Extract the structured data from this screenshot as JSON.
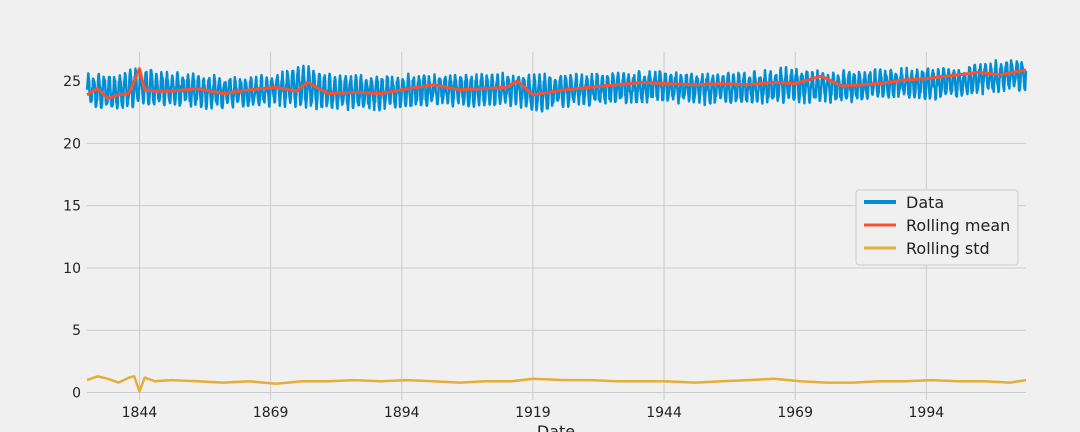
{
  "chart_data": {
    "type": "line",
    "title": "",
    "xlabel": "Date",
    "ylabel": "",
    "xlim": [
      1834,
      2013
    ],
    "ylim": [
      -0.6,
      28.3
    ],
    "x_ticks": [
      1844,
      1869,
      1894,
      1919,
      1944,
      1969,
      1994
    ],
    "y_ticks": [
      0,
      5,
      10,
      15,
      20,
      25
    ],
    "grid": true,
    "legend_position": "right",
    "colors": {
      "data": "#008fd5",
      "rolling_mean": "#fc4f30",
      "rolling_std": "#e5ae38"
    },
    "series": [
      {
        "name": "Data",
        "description_stats": {
          "x_start": 1834,
          "x_end": 2013,
          "low_range": [
            21.8,
            23.5
          ],
          "high_range": [
            25.2,
            27.0
          ]
        },
        "band": {
          "x": [
            1834,
            1840,
            1844,
            1850,
            1860,
            1869,
            1875,
            1880,
            1890,
            1894,
            1900,
            1910,
            1916,
            1919,
            1925,
            1935,
            1944,
            1950,
            1960,
            1969,
            1975,
            1985,
            1994,
            2000,
            2005,
            2013
          ],
          "low": [
            22.8,
            22.4,
            22.8,
            22.9,
            22.7,
            23.0,
            22.8,
            22.6,
            22.6,
            22.8,
            23.0,
            22.9,
            23.0,
            22.3,
            22.9,
            23.1,
            23.3,
            23.1,
            23.1,
            23.2,
            23.2,
            23.5,
            23.4,
            23.7,
            24.0,
            24.1
          ],
          "high": [
            25.6,
            25.8,
            26.3,
            25.8,
            25.4,
            25.5,
            26.5,
            25.6,
            25.5,
            25.6,
            25.7,
            25.6,
            25.7,
            25.7,
            25.6,
            25.8,
            25.9,
            25.7,
            25.8,
            26.2,
            25.8,
            26.0,
            26.2,
            26.1,
            26.5,
            27.0
          ]
        }
      },
      {
        "name": "Rolling mean",
        "x": [
          1834,
          1836,
          1838,
          1840,
          1842,
          1844,
          1845,
          1847,
          1850,
          1855,
          1860,
          1865,
          1870,
          1874,
          1876,
          1880,
          1885,
          1890,
          1894,
          1900,
          1905,
          1910,
          1914,
          1916,
          1919,
          1925,
          1930,
          1935,
          1940,
          1944,
          1950,
          1955,
          1960,
          1965,
          1969,
          1974,
          1978,
          1985,
          1990,
          1994,
          2000,
          2004,
          2008,
          2013
        ],
        "y": [
          23.9,
          24.4,
          23.6,
          23.9,
          24.0,
          26.0,
          24.3,
          24.2,
          24.2,
          24.4,
          24.0,
          24.3,
          24.5,
          24.2,
          24.9,
          24.0,
          24.1,
          24.0,
          24.3,
          24.7,
          24.3,
          24.4,
          24.5,
          25.0,
          23.9,
          24.3,
          24.5,
          24.7,
          24.9,
          24.8,
          24.7,
          24.8,
          24.7,
          24.9,
          24.8,
          25.4,
          24.6,
          24.8,
          25.1,
          25.2,
          25.5,
          25.7,
          25.5,
          25.9
        ]
      },
      {
        "name": "Rolling std",
        "x": [
          1834,
          1836,
          1838,
          1840,
          1842,
          1843,
          1844,
          1845,
          1847,
          1850,
          1855,
          1860,
          1865,
          1870,
          1875,
          1880,
          1885,
          1890,
          1895,
          1900,
          1905,
          1910,
          1915,
          1919,
          1925,
          1930,
          1935,
          1940,
          1944,
          1950,
          1955,
          1960,
          1965,
          1970,
          1975,
          1980,
          1985,
          1990,
          1995,
          2000,
          2005,
          2010,
          2013
        ],
        "y": [
          1.0,
          1.3,
          1.1,
          0.8,
          1.2,
          1.3,
          0.1,
          1.2,
          0.9,
          1.0,
          0.9,
          0.8,
          0.9,
          0.7,
          0.9,
          0.9,
          1.0,
          0.9,
          1.0,
          0.9,
          0.8,
          0.9,
          0.9,
          1.1,
          1.0,
          1.0,
          0.9,
          0.9,
          0.9,
          0.8,
          0.9,
          1.0,
          1.1,
          0.9,
          0.8,
          0.8,
          0.9,
          0.9,
          1.0,
          0.9,
          0.9,
          0.8,
          1.0
        ]
      }
    ]
  }
}
